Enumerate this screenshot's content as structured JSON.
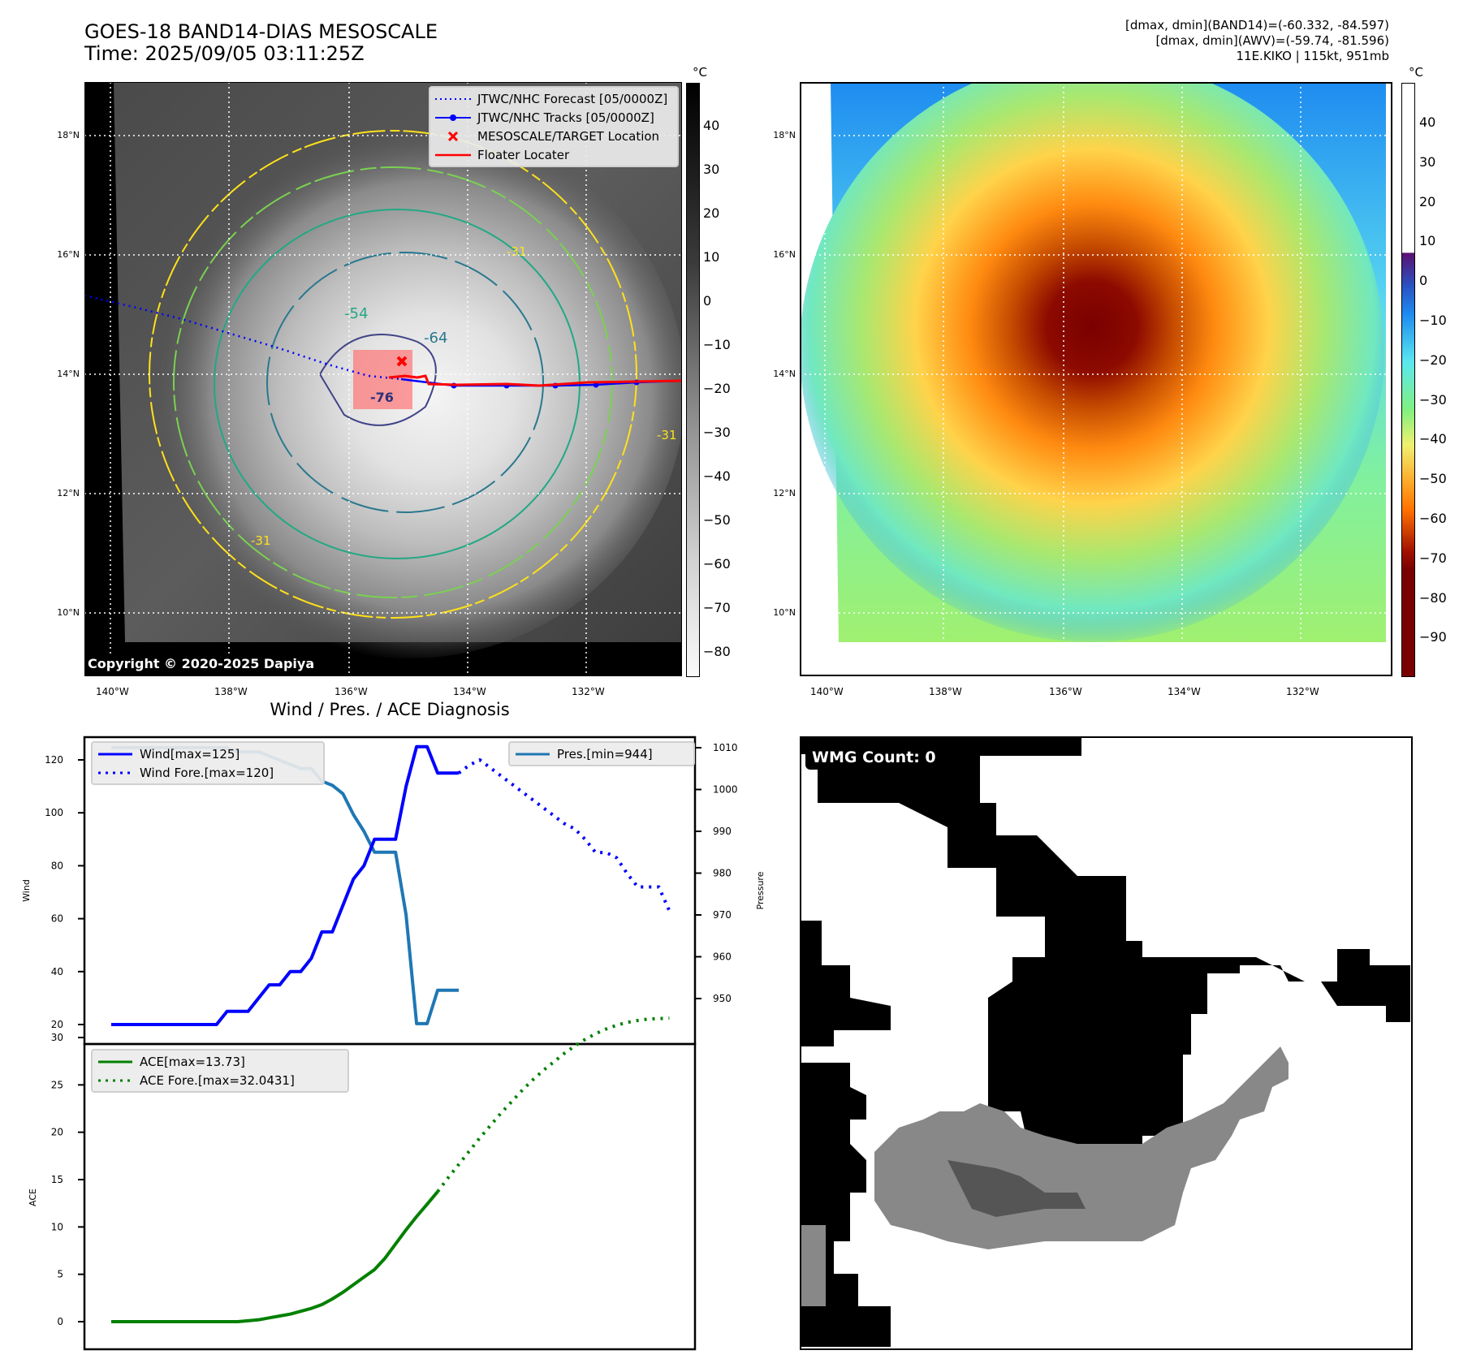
{
  "header": {
    "title_line1": "GOES-18 BAND14-DIAS MESOSCALE",
    "title_line2": "Time: 2025/09/05 03:11:25Z",
    "info_line1": "[dmax, dmin](BAND14)=(-60.332, -84.597)",
    "info_line2": "[dmax, dmin](AWV)=(-59.74, -81.596)",
    "info_line3": "11E.KIKO | 115kt, 951mb"
  },
  "ir_map": {
    "lat_ticks": [
      "18°N",
      "16°N",
      "14°N",
      "12°N",
      "10°N"
    ],
    "lon_ticks": [
      "140°W",
      "138°W",
      "136°W",
      "134°W",
      "132°W"
    ],
    "contour_labels": [
      "-31",
      "-54",
      "-64",
      "-76",
      "-31",
      "-31"
    ],
    "legend": [
      {
        "label": "JTWC/NHC Forecast [05/0000Z]",
        "style": "dotted",
        "color": "#0000ff"
      },
      {
        "label": "JTWC/NHC Tracks [05/0000Z]",
        "style": "line-marker",
        "color": "#0000ff"
      },
      {
        "label": "MESOSCALE/TARGET Location",
        "style": "x",
        "color": "#ff0000"
      },
      {
        "label": "Floater Locater",
        "style": "line",
        "color": "#ff0000"
      }
    ],
    "copyright": "Copyright © 2020-2025 Dapiya",
    "colorbar_unit": "°C",
    "colorbar_ticks": [
      "40",
      "30",
      "20",
      "10",
      "0",
      "−10",
      "−20",
      "−30",
      "−40",
      "−50",
      "−60",
      "−70",
      "−80"
    ]
  },
  "awv_map": {
    "lat_ticks": [
      "18°N",
      "16°N",
      "14°N",
      "12°N",
      "10°N"
    ],
    "lon_ticks": [
      "140°W",
      "138°W",
      "136°W",
      "134°W",
      "132°W"
    ],
    "colorbar_unit": "°C",
    "colorbar_ticks": [
      "40",
      "30",
      "20",
      "10",
      "0",
      "−10",
      "−20",
      "−30",
      "−40",
      "−50",
      "−60",
      "−70",
      "−80",
      "−90"
    ]
  },
  "wmg_panel": {
    "label": "WMG Count: 0"
  },
  "chart_data": [
    {
      "type": "line",
      "title": "Wind / Pres. / ACE Diagnosis",
      "ylabel": "Wind",
      "y2label": "Pressure",
      "ylim": [
        15,
        131
      ],
      "y2lim": [
        941,
        1013
      ],
      "yticks": [
        "20",
        "40",
        "60",
        "80",
        "100",
        "120"
      ],
      "y2ticks": [
        "950",
        "960",
        "970",
        "980",
        "990",
        "1000",
        "1010"
      ],
      "grid": false,
      "legend_left": "top-left",
      "legend_right": "top-right",
      "x": [
        0,
        1,
        2,
        3,
        4,
        5,
        6,
        7,
        8,
        9,
        10,
        11,
        12,
        13,
        14,
        15,
        16,
        17,
        18,
        19,
        20,
        21,
        22,
        23,
        24,
        25,
        26,
        27,
        28,
        29,
        30,
        31,
        32,
        33,
        34,
        35
      ],
      "series": [
        {
          "name": "Wind[max=125]",
          "axis": "left",
          "style": "solid",
          "color": "#0000ff",
          "x": [
            0,
            1,
            2,
            3,
            4,
            5,
            6,
            7,
            8,
            9,
            10,
            11,
            12,
            13,
            14,
            15,
            16,
            17,
            18,
            19,
            20,
            21,
            22,
            23,
            24,
            25,
            26,
            27,
            28,
            29,
            30,
            31,
            32,
            33,
            34,
            35
          ],
          "values": [
            20,
            20,
            20,
            20,
            20,
            20,
            20,
            20,
            20,
            20,
            20,
            25,
            25,
            25,
            30,
            35,
            35,
            40,
            40,
            45,
            55,
            55,
            65,
            75,
            80,
            90,
            90,
            90,
            110,
            125,
            125,
            115,
            115,
            115,
            null,
            null
          ]
        },
        {
          "name": "Wind Fore.[max=120]",
          "axis": "left",
          "style": "dotted",
          "color": "#0000ff",
          "x": [
            33,
            34,
            35,
            36,
            37,
            38,
            39,
            40,
            41,
            42,
            43,
            44,
            45,
            46,
            47,
            48,
            49,
            50,
            51,
            52,
            53
          ],
          "values": [
            115,
            118,
            120,
            117,
            114,
            111,
            108,
            105,
            102,
            99,
            96,
            94,
            90,
            85,
            85,
            83,
            77,
            72,
            72,
            72,
            63
          ]
        },
        {
          "name": "Pres.[min=944]",
          "axis": "right",
          "style": "solid",
          "color": "#1f77b4",
          "x": [
            0,
            1,
            2,
            3,
            4,
            5,
            6,
            7,
            8,
            9,
            10,
            11,
            12,
            13,
            14,
            15,
            16,
            17,
            18,
            19,
            20,
            21,
            22,
            23,
            24,
            25,
            26,
            27,
            28,
            29,
            30,
            31,
            32,
            33
          ],
          "values": [
            1010,
            1010,
            1010,
            1010,
            1010,
            1010,
            1010,
            1010,
            1010,
            1010,
            1010,
            1010,
            1009,
            1009,
            1009,
            1008,
            1007,
            1006,
            1005,
            1005,
            1002,
            1001,
            999,
            994,
            990,
            985,
            985,
            985,
            970,
            944,
            944,
            952,
            952,
            952
          ]
        }
      ],
      "legend": [
        "Wind[max=125]",
        "Wind Fore.[max=120]",
        "Pres.[min=944]"
      ]
    },
    {
      "type": "line",
      "title": "",
      "ylabel": "ACE",
      "ylim": [
        -1.5,
        34
      ],
      "yticks": [
        "0",
        "5",
        "10",
        "15",
        "20",
        "25",
        "30"
      ],
      "grid": false,
      "legend_position": "top-left",
      "series": [
        {
          "name": "ACE[max=13.73]",
          "style": "solid",
          "color": "#008000",
          "x": [
            0,
            1,
            2,
            3,
            4,
            5,
            6,
            7,
            8,
            9,
            10,
            11,
            12,
            13,
            14,
            15,
            16,
            17,
            18,
            19,
            20,
            21,
            22,
            23,
            24,
            25,
            26,
            27,
            28,
            29,
            30,
            31,
            32,
            33
          ],
          "values": [
            0,
            0,
            0,
            0,
            0,
            0,
            0,
            0,
            0,
            0,
            0,
            0,
            0,
            0.1,
            0.2,
            0.4,
            0.6,
            0.8,
            1.1,
            1.4,
            1.8,
            2.4,
            3.1,
            3.9,
            4.7,
            5.5,
            6.7,
            8.2,
            9.7,
            11.1,
            12.4,
            13.73,
            null,
            null
          ]
        },
        {
          "name": "ACE Fore.[max=32.0431]",
          "style": "dotted",
          "color": "#008000",
          "x": [
            31,
            32,
            33,
            34,
            35,
            36,
            37,
            38,
            39,
            40,
            41,
            42,
            43,
            44,
            45,
            46,
            47,
            48,
            49,
            50,
            51,
            52,
            53
          ],
          "values": [
            13.73,
            15.2,
            16.6,
            18.0,
            19.4,
            20.7,
            22.0,
            23.2,
            24.4,
            25.5,
            26.5,
            27.4,
            28.3,
            29.1,
            29.8,
            30.4,
            30.9,
            31.3,
            31.6,
            31.8,
            31.95,
            32.0,
            32.0431
          ]
        }
      ],
      "legend": [
        "ACE[max=13.73]",
        "ACE Fore.[max=32.0431]"
      ]
    }
  ]
}
